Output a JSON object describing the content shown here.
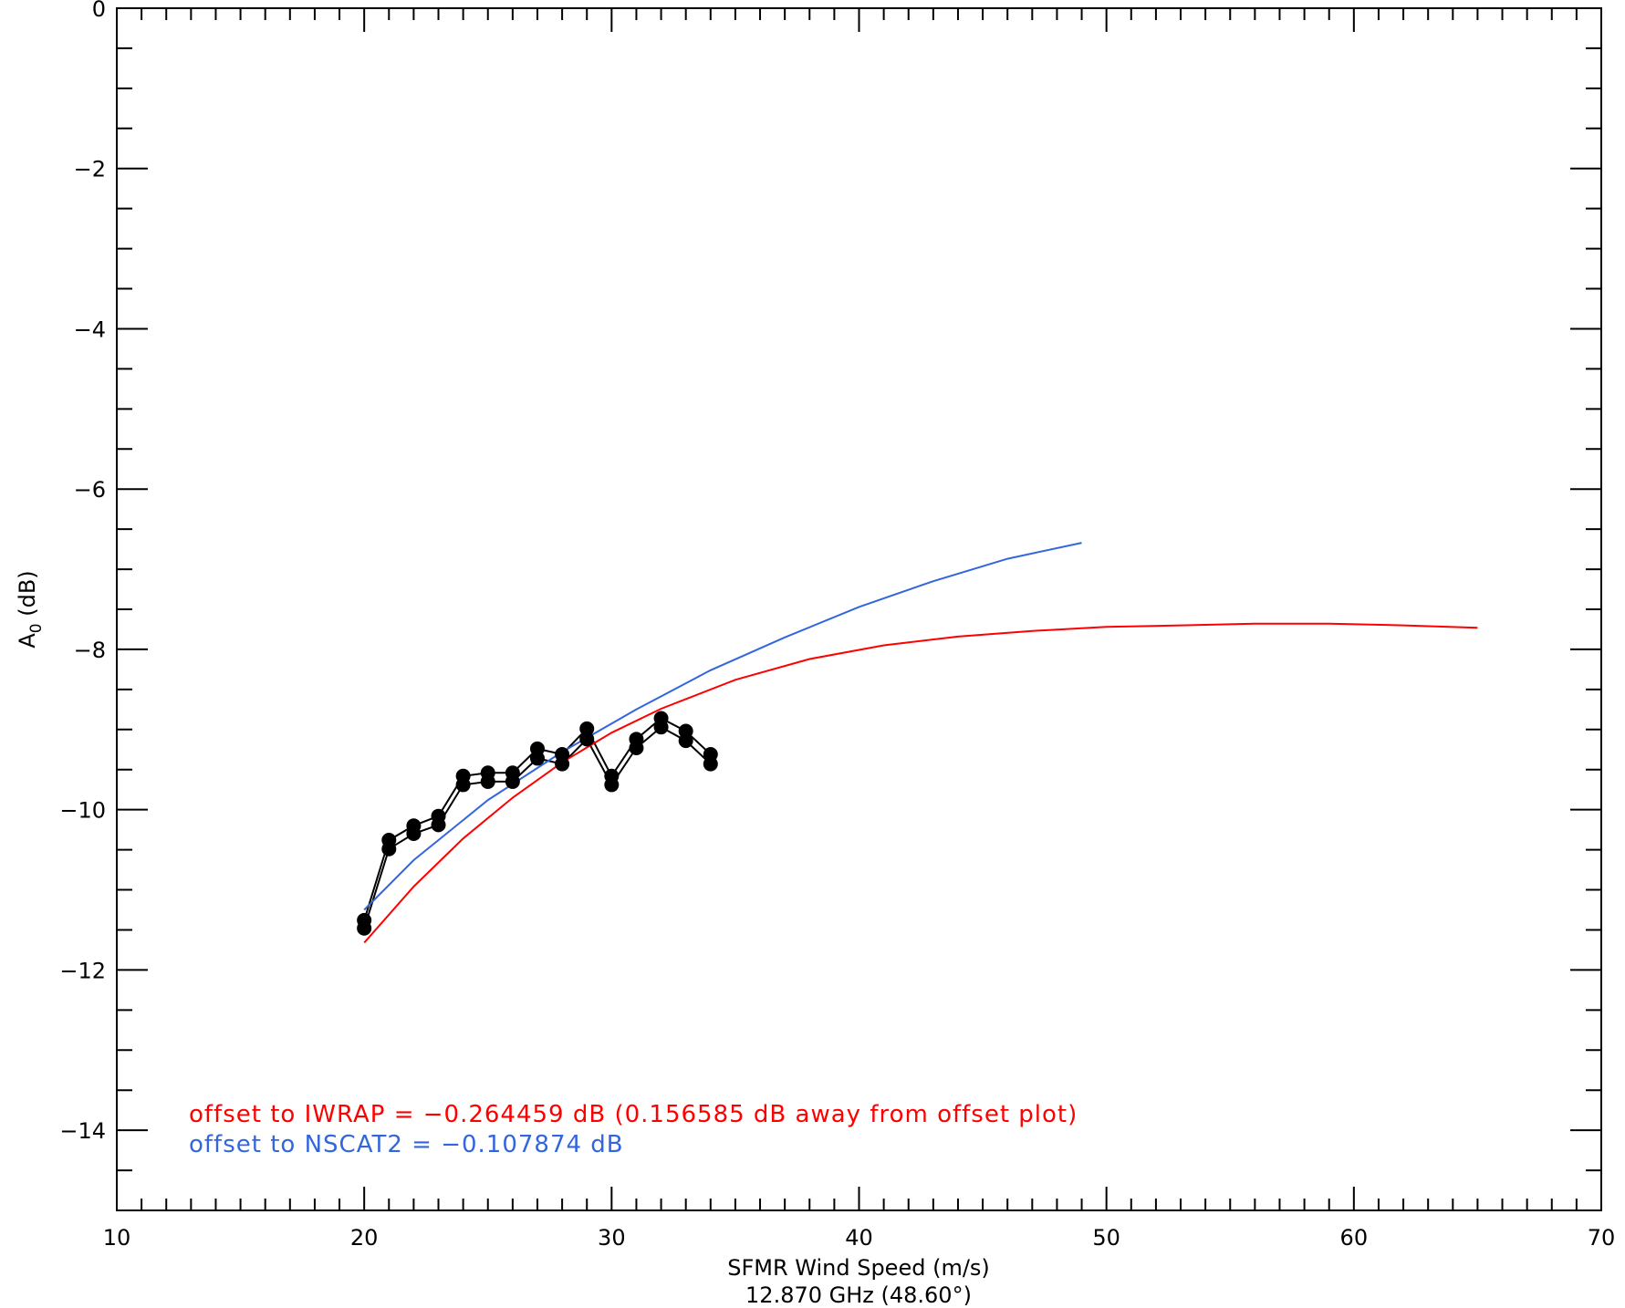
{
  "chart_data": {
    "type": "line",
    "title": "",
    "xlabel": "SFMR Wind Speed (m/s)",
    "xlabel2": "12.870 GHz (48.60°)",
    "ylabel_main": "A",
    "ylabel_sub": "0",
    "ylabel_rest": " (dB)",
    "xlim": [
      10,
      70
    ],
    "ylim": [
      -15,
      0
    ],
    "xticks": [
      10,
      20,
      30,
      40,
      50,
      60,
      70
    ],
    "yticks": [
      0,
      -2,
      -4,
      -6,
      -8,
      -10,
      -12,
      -14
    ],
    "xtick_labels": [
      "10",
      "20",
      "30",
      "40",
      "50",
      "60",
      "70"
    ],
    "ytick_labels": [
      "0",
      "−2",
      "−4",
      "−6",
      "−8",
      "−10",
      "−12",
      "−14"
    ],
    "grid": false,
    "series": [
      {
        "color": "#000000",
        "markers": true,
        "x": [
          20,
          21,
          22,
          23,
          24,
          25,
          26,
          27,
          28,
          29,
          30,
          31,
          32,
          33,
          34
        ],
        "y": [
          -11.38,
          -10.38,
          -10.2,
          -10.08,
          -9.58,
          -9.54,
          -9.54,
          -9.24,
          -9.31,
          -8.99,
          -9.58,
          -9.12,
          -8.86,
          -9.02,
          -9.31
        ]
      },
      {
        "color": "#000000",
        "markers": true,
        "x": [
          20,
          21,
          22,
          23,
          24,
          25,
          26,
          27,
          28,
          29,
          30,
          31,
          32,
          33,
          34
        ],
        "y": [
          -11.48,
          -10.49,
          -10.3,
          -10.19,
          -9.69,
          -9.65,
          -9.65,
          -9.36,
          -9.43,
          -9.12,
          -9.69,
          -9.23,
          -8.97,
          -9.14,
          -9.43
        ]
      },
      {
        "color": "#ff0000",
        "markers": false,
        "x": [
          20,
          22,
          24,
          26,
          28,
          30,
          32,
          35,
          38,
          41,
          44,
          47,
          50,
          53,
          56,
          59,
          62,
          65
        ],
        "y": [
          -11.66,
          -10.96,
          -10.36,
          -9.85,
          -9.41,
          -9.04,
          -8.74,
          -8.38,
          -8.12,
          -7.95,
          -7.84,
          -7.77,
          -7.72,
          -7.7,
          -7.68,
          -7.68,
          -7.7,
          -7.73
        ]
      },
      {
        "color": "#3366dd",
        "markers": false,
        "x": [
          20,
          22,
          25,
          28,
          31,
          34,
          37,
          40,
          43,
          46,
          49
        ],
        "y": [
          -11.25,
          -10.63,
          -9.88,
          -9.28,
          -8.75,
          -8.26,
          -7.85,
          -7.47,
          -7.15,
          -6.87,
          -6.67
        ]
      }
    ],
    "annotations": [
      {
        "text": "offset to IWRAP = −0.264459 dB (0.156585 dB away from offset plot)",
        "color": "#ff0000"
      },
      {
        "text": "offset to NSCAT2 = −0.107874 dB",
        "color": "#3366dd"
      }
    ]
  }
}
